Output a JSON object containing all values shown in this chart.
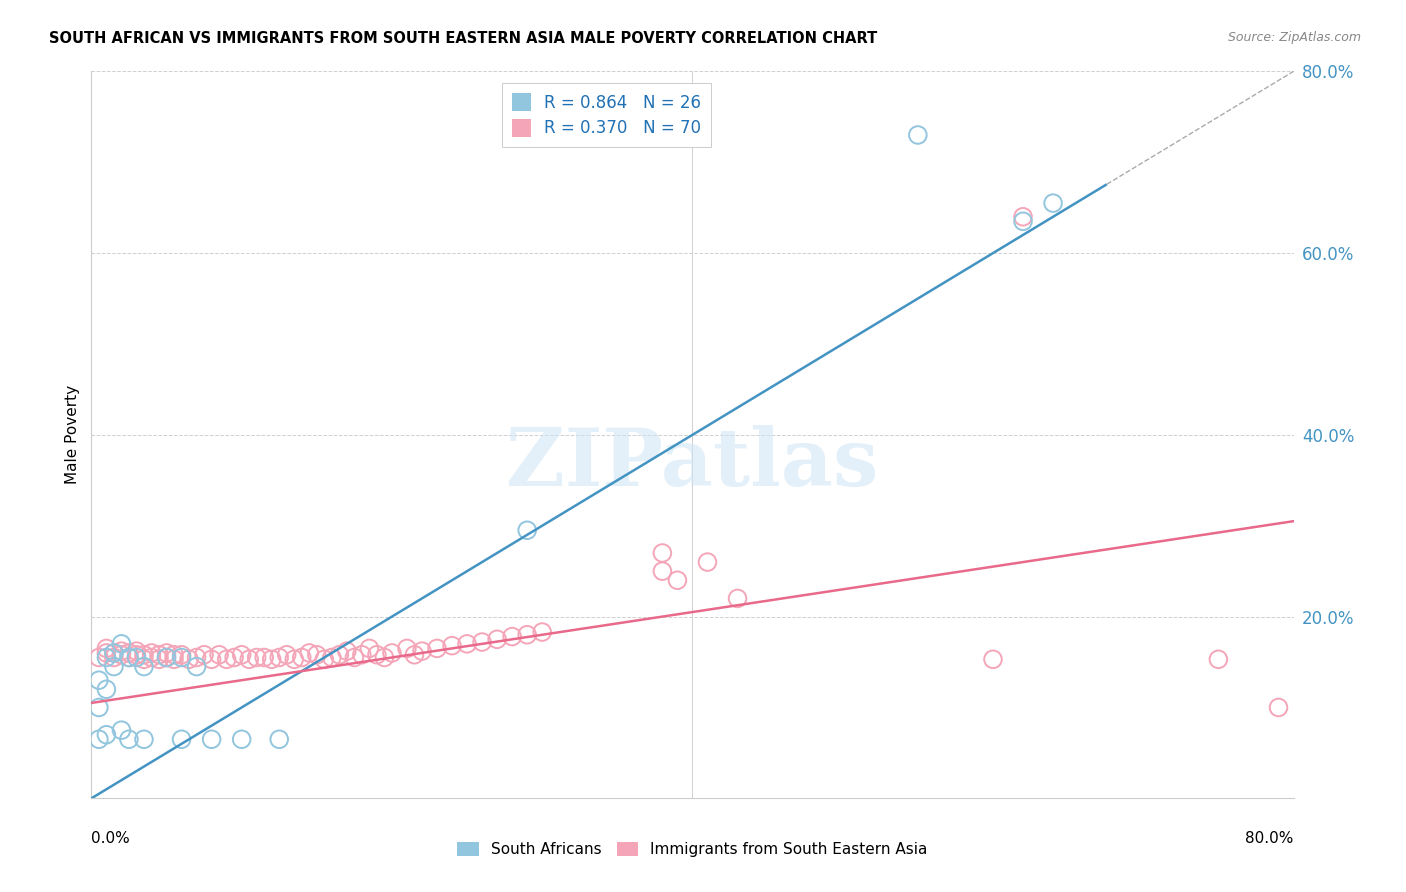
{
  "title": "SOUTH AFRICAN VS IMMIGRANTS FROM SOUTH EASTERN ASIA MALE POVERTY CORRELATION CHART",
  "source": "Source: ZipAtlas.com",
  "ylabel": "Male Poverty",
  "xmin": 0.0,
  "xmax": 0.8,
  "ymin": 0.0,
  "ymax": 0.8,
  "right_yticks": [
    0.0,
    0.2,
    0.4,
    0.6,
    0.8
  ],
  "right_yticklabels": [
    "",
    "20.0%",
    "40.0%",
    "60.0%",
    "80.0%"
  ],
  "watermark": "ZIPatlas",
  "legend_r1": "R = 0.864   N = 26",
  "legend_r2": "R = 0.370   N = 70",
  "blue_color": "#92c5de",
  "pink_color": "#f4a6b8",
  "blue_line_color": "#4393c3",
  "pink_line_color": "#e8698a",
  "blue_scatter": [
    [
      0.005,
      0.13
    ],
    [
      0.01,
      0.155
    ],
    [
      0.015,
      0.16
    ],
    [
      0.02,
      0.17
    ],
    [
      0.005,
      0.1
    ],
    [
      0.01,
      0.12
    ],
    [
      0.015,
      0.145
    ],
    [
      0.025,
      0.155
    ],
    [
      0.03,
      0.155
    ],
    [
      0.035,
      0.145
    ],
    [
      0.005,
      0.065
    ],
    [
      0.01,
      0.07
    ],
    [
      0.02,
      0.075
    ],
    [
      0.025,
      0.065
    ],
    [
      0.035,
      0.065
    ],
    [
      0.06,
      0.065
    ],
    [
      0.08,
      0.065
    ],
    [
      0.1,
      0.065
    ],
    [
      0.125,
      0.065
    ],
    [
      0.05,
      0.155
    ],
    [
      0.06,
      0.155
    ],
    [
      0.07,
      0.145
    ],
    [
      0.55,
      0.73
    ],
    [
      0.62,
      0.635
    ],
    [
      0.64,
      0.655
    ],
    [
      0.29,
      0.295
    ]
  ],
  "pink_scatter": [
    [
      0.005,
      0.155
    ],
    [
      0.01,
      0.16
    ],
    [
      0.01,
      0.165
    ],
    [
      0.015,
      0.16
    ],
    [
      0.015,
      0.155
    ],
    [
      0.02,
      0.162
    ],
    [
      0.02,
      0.158
    ],
    [
      0.025,
      0.16
    ],
    [
      0.025,
      0.155
    ],
    [
      0.03,
      0.162
    ],
    [
      0.03,
      0.158
    ],
    [
      0.035,
      0.158
    ],
    [
      0.035,
      0.153
    ],
    [
      0.04,
      0.16
    ],
    [
      0.04,
      0.155
    ],
    [
      0.045,
      0.158
    ],
    [
      0.045,
      0.153
    ],
    [
      0.05,
      0.16
    ],
    [
      0.05,
      0.155
    ],
    [
      0.055,
      0.158
    ],
    [
      0.055,
      0.153
    ],
    [
      0.06,
      0.158
    ],
    [
      0.065,
      0.153
    ],
    [
      0.07,
      0.155
    ],
    [
      0.075,
      0.158
    ],
    [
      0.08,
      0.153
    ],
    [
      0.085,
      0.158
    ],
    [
      0.09,
      0.153
    ],
    [
      0.095,
      0.155
    ],
    [
      0.1,
      0.158
    ],
    [
      0.105,
      0.153
    ],
    [
      0.11,
      0.155
    ],
    [
      0.115,
      0.155
    ],
    [
      0.12,
      0.153
    ],
    [
      0.125,
      0.155
    ],
    [
      0.13,
      0.158
    ],
    [
      0.135,
      0.153
    ],
    [
      0.14,
      0.155
    ],
    [
      0.145,
      0.16
    ],
    [
      0.15,
      0.158
    ],
    [
      0.155,
      0.153
    ],
    [
      0.16,
      0.155
    ],
    [
      0.165,
      0.158
    ],
    [
      0.17,
      0.162
    ],
    [
      0.175,
      0.155
    ],
    [
      0.18,
      0.158
    ],
    [
      0.185,
      0.165
    ],
    [
      0.19,
      0.158
    ],
    [
      0.195,
      0.155
    ],
    [
      0.2,
      0.16
    ],
    [
      0.21,
      0.165
    ],
    [
      0.215,
      0.158
    ],
    [
      0.22,
      0.162
    ],
    [
      0.23,
      0.165
    ],
    [
      0.24,
      0.168
    ],
    [
      0.25,
      0.17
    ],
    [
      0.26,
      0.172
    ],
    [
      0.27,
      0.175
    ],
    [
      0.28,
      0.178
    ],
    [
      0.29,
      0.18
    ],
    [
      0.3,
      0.183
    ],
    [
      0.38,
      0.25
    ],
    [
      0.38,
      0.27
    ],
    [
      0.39,
      0.24
    ],
    [
      0.41,
      0.26
    ],
    [
      0.43,
      0.22
    ],
    [
      0.6,
      0.153
    ],
    [
      0.75,
      0.153
    ],
    [
      0.79,
      0.1
    ],
    [
      0.62,
      0.64
    ]
  ],
  "blue_line_x": [
    -0.01,
    0.675
  ],
  "blue_line_y": [
    -0.01,
    0.675
  ],
  "pink_line_x": [
    0.0,
    0.8
  ],
  "pink_line_y": [
    0.105,
    0.305
  ],
  "ref_line_x": [
    0.55,
    0.8
  ],
  "ref_line_y": [
    0.55,
    0.8
  ]
}
